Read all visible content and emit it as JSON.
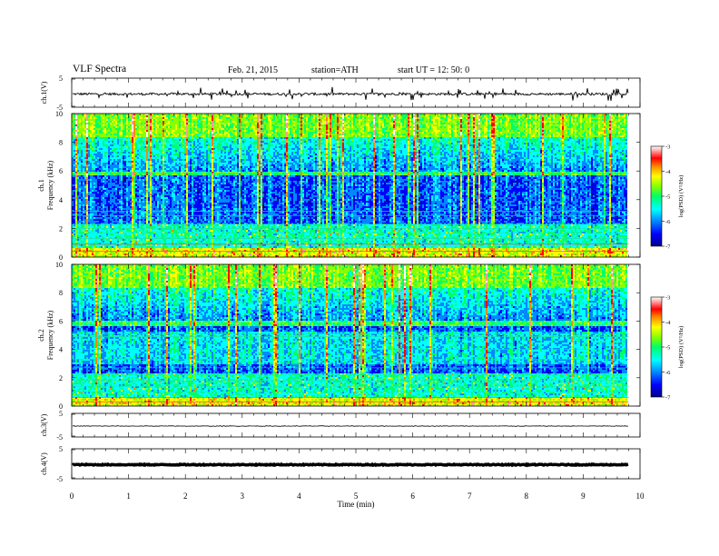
{
  "header": {
    "title": "VLF  Spectra",
    "date": "Feb. 21, 2015",
    "station": "station=ATH",
    "start": "start  UT  =   12: 50: 0"
  },
  "chart_data": [
    {
      "type": "line",
      "id": "ch1",
      "ylabel": "ch.1(V)",
      "ylim": [
        -5,
        5
      ],
      "yticks": [
        "5",
        "-5"
      ],
      "xlim": [
        0,
        10
      ],
      "description_series": "raw waveform, mean ~0, amplitude ~0.5 V with spikes"
    },
    {
      "type": "heatmap",
      "id": "spec1",
      "ylabel": "ch.1\nFrequency  (kHz)",
      "ylim": [
        0,
        10
      ],
      "yticks": [
        "0",
        "2",
        "4",
        "6",
        "8",
        "10"
      ],
      "xlim": [
        0,
        10
      ],
      "data_end_min": 9.8,
      "colorbar": {
        "label": "log(PSD) (V²/Hz)",
        "range": [
          -7,
          -3
        ],
        "ticks": [
          "-3",
          "-4",
          "-5",
          "-6",
          "-7"
        ]
      }
    },
    {
      "type": "heatmap",
      "id": "spec2",
      "ylabel": "ch.2\nFrequency  (kHz)",
      "ylim": [
        0,
        10
      ],
      "yticks": [
        "0",
        "2",
        "4",
        "6",
        "8",
        "10"
      ],
      "xlim": [
        0,
        10
      ],
      "data_end_min": 9.8,
      "colorbar": {
        "label": "log(PSD) (V²/Hz)",
        "range": [
          -7,
          -3
        ],
        "ticks": [
          "-3",
          "-4",
          "-5",
          "-6",
          "-7"
        ]
      }
    },
    {
      "type": "line",
      "id": "ch3",
      "ylabel": "ch.3(V)",
      "ylim": [
        -5,
        5
      ],
      "yticks": [
        "5",
        "-5"
      ],
      "xlim": [
        0,
        10
      ]
    },
    {
      "type": "line",
      "id": "ch4",
      "ylabel": "ch.4(V)",
      "ylim": [
        -5,
        5
      ],
      "yticks": [
        "5",
        "-5"
      ],
      "xlim": [
        0,
        10
      ]
    }
  ],
  "xaxis": {
    "label": "Time  (min)",
    "ticks": [
      "0",
      "1",
      "2",
      "3",
      "4",
      "5",
      "6",
      "7",
      "8",
      "9",
      "10"
    ]
  },
  "colormap": [
    "#000088",
    "#0000ff",
    "#0088ff",
    "#00ffff",
    "#00ff66",
    "#88ff00",
    "#ffff00",
    "#ff8800",
    "#ff0000",
    "#ff9999",
    "#ffffff"
  ]
}
